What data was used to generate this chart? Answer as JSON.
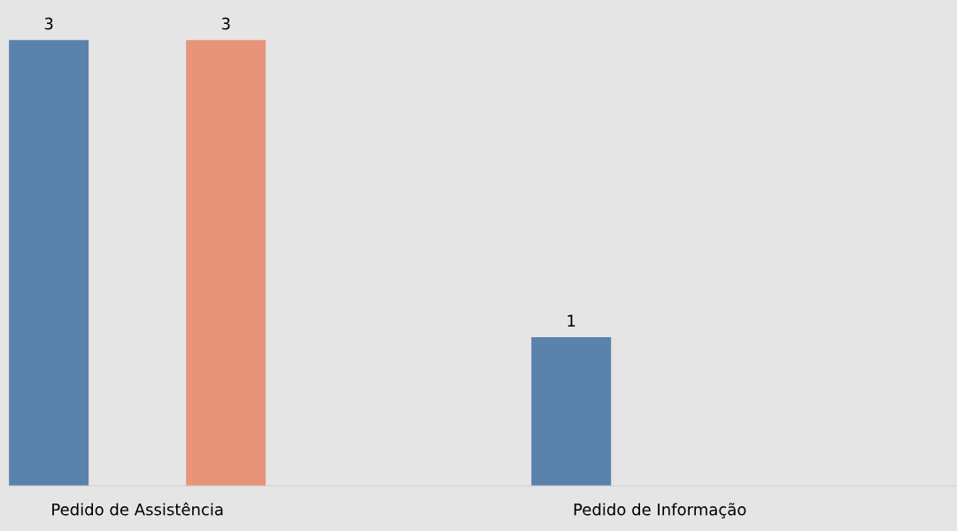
{
  "chart_data": {
    "type": "bar",
    "categories": [
      "Pedido de Assistência",
      "Pedido de Informação"
    ],
    "series": [
      {
        "color": "#5b82ab",
        "values": [
          3,
          1
        ]
      },
      {
        "color": "#e8947a",
        "values": [
          3,
          null
        ]
      }
    ],
    "ylim": [
      0,
      3.27
    ],
    "data_labels": true,
    "grid": false,
    "legend": false,
    "tick_labels": "x"
  }
}
